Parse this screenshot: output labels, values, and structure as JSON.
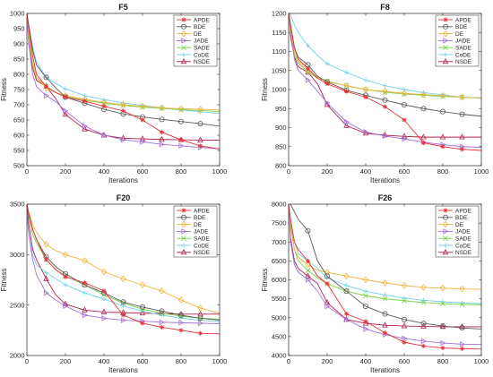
{
  "figure": {
    "x_label": "Iterations",
    "y_label": "Fitness"
  },
  "legend_names": [
    "APDE",
    "BDE",
    "DE",
    "JADE",
    "SADE",
    "CoDE",
    "NSDE"
  ],
  "series_styles": [
    {
      "color": "#e8303a",
      "marker": "asterisk"
    },
    {
      "color": "#5a5a5a",
      "marker": "circle"
    },
    {
      "color": "#f0b43c",
      "marker": "diamond"
    },
    {
      "color": "#a670d6",
      "marker": "triangle-right"
    },
    {
      "color": "#7ccf4e",
      "marker": "x"
    },
    {
      "color": "#6fd1e8",
      "marker": "plus"
    },
    {
      "color": "#b0204a",
      "marker": "triangle-up"
    }
  ],
  "chart_data": [
    {
      "type": "line",
      "title": "F5",
      "xlabel": "Iterations",
      "ylabel": "Fitness",
      "xlim": [
        0,
        1000
      ],
      "ylim": [
        500,
        1000
      ],
      "xticks": [
        0,
        200,
        400,
        600,
        800,
        1000
      ],
      "yticks": [
        500,
        550,
        600,
        650,
        700,
        750,
        800,
        850,
        900,
        950,
        1000
      ],
      "x": [
        0,
        10,
        30,
        50,
        100,
        150,
        200,
        300,
        400,
        500,
        600,
        700,
        800,
        900,
        1000
      ],
      "series": [
        {
          "name": "APDE",
          "values": [
            1000,
            950,
            860,
            800,
            760,
            740,
            725,
            712,
            695,
            680,
            650,
            610,
            585,
            565,
            555
          ]
        },
        {
          "name": "BDE",
          "values": [
            1000,
            960,
            880,
            830,
            790,
            755,
            725,
            705,
            685,
            670,
            660,
            652,
            645,
            638,
            630
          ]
        },
        {
          "name": "DE",
          "values": [
            1000,
            930,
            840,
            790,
            755,
            740,
            730,
            718,
            708,
            700,
            695,
            690,
            687,
            685,
            683
          ]
        },
        {
          "name": "JADE",
          "values": [
            990,
            900,
            800,
            760,
            730,
            710,
            680,
            630,
            600,
            585,
            578,
            570,
            565,
            560,
            555
          ]
        },
        {
          "name": "SADE",
          "values": [
            1000,
            920,
            830,
            790,
            760,
            740,
            728,
            715,
            705,
            698,
            692,
            688,
            684,
            681,
            678
          ]
        },
        {
          "name": "CoDE",
          "values": [
            1000,
            960,
            890,
            840,
            790,
            770,
            752,
            730,
            717,
            706,
            698,
            690,
            683,
            677,
            672
          ]
        },
        {
          "name": "NSDE",
          "values": [
            1000,
            900,
            820,
            780,
            760,
            720,
            668,
            620,
            600,
            590,
            588,
            586,
            585,
            584,
            584
          ]
        }
      ]
    },
    {
      "type": "line",
      "title": "F8",
      "xlabel": "Iterations",
      "ylabel": "Fitness",
      "xlim": [
        0,
        1000
      ],
      "ylim": [
        800,
        1200
      ],
      "xticks": [
        0,
        200,
        400,
        600,
        800,
        1000
      ],
      "yticks": [
        800,
        850,
        900,
        950,
        1000,
        1050,
        1100,
        1150,
        1200
      ],
      "x": [
        0,
        10,
        30,
        50,
        100,
        150,
        200,
        300,
        400,
        500,
        600,
        700,
        800,
        900,
        1000
      ],
      "series": [
        {
          "name": "APDE",
          "values": [
            1200,
            1170,
            1110,
            1080,
            1055,
            1030,
            1015,
            995,
            980,
            955,
            920,
            860,
            850,
            843,
            840
          ]
        },
        {
          "name": "BDE",
          "values": [
            1200,
            1170,
            1110,
            1085,
            1065,
            1035,
            1020,
            998,
            985,
            972,
            960,
            950,
            942,
            935,
            930
          ]
        },
        {
          "name": "DE",
          "values": [
            1200,
            1160,
            1100,
            1075,
            1050,
            1032,
            1020,
            1010,
            1000,
            995,
            990,
            987,
            984,
            980,
            978
          ]
        },
        {
          "name": "JADE",
          "values": [
            1200,
            1150,
            1080,
            1050,
            1025,
            995,
            965,
            915,
            888,
            878,
            870,
            862,
            855,
            850,
            848
          ]
        },
        {
          "name": "SADE",
          "values": [
            1200,
            1150,
            1090,
            1070,
            1045,
            1030,
            1022,
            1010,
            1000,
            993,
            988,
            985,
            982,
            980,
            978
          ]
        },
        {
          "name": "CoDE",
          "values": [
            1200,
            1195,
            1170,
            1150,
            1115,
            1090,
            1068,
            1045,
            1025,
            1010,
            1000,
            992,
            986,
            980,
            977
          ]
        },
        {
          "name": "NSDE",
          "values": [
            1200,
            1140,
            1085,
            1060,
            1045,
            1015,
            960,
            905,
            885,
            880,
            877,
            875,
            875,
            875,
            875
          ]
        }
      ]
    },
    {
      "type": "line",
      "title": "F20",
      "xlabel": "Iterations",
      "ylabel": "Fitness",
      "xlim": [
        0,
        1000
      ],
      "ylim": [
        2000,
        3500
      ],
      "xticks": [
        0,
        200,
        400,
        600,
        800,
        1000
      ],
      "yticks": [
        2000,
        2500,
        3000,
        3500
      ],
      "x": [
        0,
        10,
        30,
        50,
        100,
        150,
        200,
        300,
        400,
        500,
        600,
        700,
        800,
        900,
        1000
      ],
      "series": [
        {
          "name": "APDE",
          "values": [
            3500,
            3400,
            3250,
            3150,
            2950,
            2850,
            2780,
            2720,
            2640,
            2400,
            2320,
            2280,
            2250,
            2220,
            2215
          ]
        },
        {
          "name": "BDE",
          "values": [
            3500,
            3400,
            3250,
            3150,
            2980,
            2880,
            2810,
            2700,
            2620,
            2530,
            2480,
            2440,
            2400,
            2370,
            2350
          ]
        },
        {
          "name": "DE",
          "values": [
            3500,
            3420,
            3300,
            3220,
            3100,
            3040,
            3000,
            2940,
            2830,
            2760,
            2700,
            2640,
            2550,
            2470,
            2420
          ]
        },
        {
          "name": "JADE",
          "values": [
            3400,
            3200,
            2950,
            2800,
            2620,
            2550,
            2490,
            2400,
            2370,
            2350,
            2340,
            2330,
            2325,
            2320,
            2315
          ]
        },
        {
          "name": "SADE",
          "values": [
            3500,
            3380,
            3200,
            3120,
            2950,
            2850,
            2790,
            2700,
            2600,
            2520,
            2460,
            2420,
            2390,
            2370,
            2360
          ]
        },
        {
          "name": "CoDE",
          "values": [
            3400,
            3200,
            3000,
            2900,
            2820,
            2760,
            2700,
            2620,
            2560,
            2490,
            2440,
            2400,
            2370,
            2350,
            2335
          ]
        },
        {
          "name": "NSDE",
          "values": [
            3500,
            3300,
            3050,
            2950,
            2760,
            2600,
            2510,
            2450,
            2430,
            2425,
            2420,
            2415,
            2410,
            2410,
            2410
          ]
        }
      ]
    },
    {
      "type": "line",
      "title": "F26",
      "xlabel": "Iterations",
      "ylabel": "Fitness",
      "xlim": [
        0,
        1000
      ],
      "ylim": [
        4000,
        8000
      ],
      "xticks": [
        0,
        200,
        400,
        600,
        800,
        1000
      ],
      "yticks": [
        4000,
        4500,
        5000,
        5500,
        6000,
        6500,
        7000,
        7500,
        8000
      ],
      "x": [
        0,
        10,
        30,
        50,
        100,
        150,
        200,
        300,
        400,
        500,
        600,
        700,
        800,
        900,
        1000
      ],
      "series": [
        {
          "name": "APDE",
          "values": [
            8000,
            7600,
            7000,
            6800,
            6500,
            6100,
            5900,
            5100,
            4900,
            4600,
            4350,
            4250,
            4200,
            4180,
            4170
          ]
        },
        {
          "name": "BDE",
          "values": [
            8000,
            8000,
            7800,
            7600,
            7300,
            6500,
            6100,
            5700,
            5300,
            5100,
            4950,
            4850,
            4780,
            4730,
            4700
          ]
        },
        {
          "name": "DE",
          "values": [
            8000,
            7400,
            6800,
            6600,
            6400,
            6250,
            6200,
            6100,
            6000,
            5920,
            5850,
            5800,
            5780,
            5760,
            5750
          ]
        },
        {
          "name": "JADE",
          "values": [
            8000,
            7000,
            6400,
            6200,
            6000,
            5700,
            5300,
            4950,
            4700,
            4550,
            4450,
            4380,
            4330,
            4300,
            4290
          ]
        },
        {
          "name": "SADE",
          "values": [
            8000,
            7500,
            6800,
            6500,
            6250,
            6050,
            5900,
            5700,
            5580,
            5500,
            5450,
            5400,
            5370,
            5350,
            5340
          ]
        },
        {
          "name": "CoDE",
          "values": [
            8000,
            7600,
            7000,
            6700,
            6500,
            6300,
            6050,
            5850,
            5700,
            5600,
            5520,
            5460,
            5420,
            5390,
            5370
          ]
        },
        {
          "name": "NSDE",
          "values": [
            8000,
            7100,
            6500,
            6300,
            6100,
            5900,
            5400,
            4950,
            4850,
            4800,
            4780,
            4770,
            4760,
            4760,
            4760
          ]
        }
      ]
    }
  ]
}
